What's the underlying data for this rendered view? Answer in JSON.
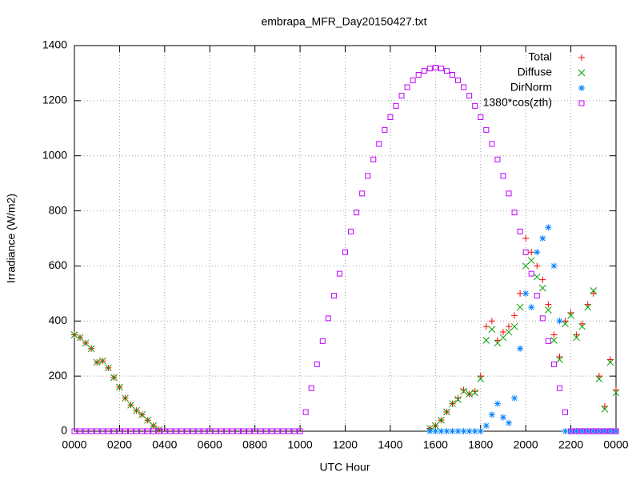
{
  "chart_data": {
    "type": "scatter",
    "title": "embrapa_MFR_Day20150427.txt",
    "xlabel": "UTC Hour",
    "ylabel": "Irradiance (W/m2)",
    "xlim": [
      0,
      24
    ],
    "ylim": [
      0,
      1400
    ],
    "xticks": [
      {
        "value": 0,
        "label": "0000"
      },
      {
        "value": 2,
        "label": "0200"
      },
      {
        "value": 4,
        "label": "0400"
      },
      {
        "value": 6,
        "label": "0600"
      },
      {
        "value": 8,
        "label": "0800"
      },
      {
        "value": 10,
        "label": "1000"
      },
      {
        "value": 12,
        "label": "1200"
      },
      {
        "value": 14,
        "label": "1400"
      },
      {
        "value": 16,
        "label": "1600"
      },
      {
        "value": 18,
        "label": "1800"
      },
      {
        "value": 20,
        "label": "2000"
      },
      {
        "value": 22,
        "label": "2200"
      },
      {
        "value": 24,
        "label": "0000"
      }
    ],
    "yticks": [
      0,
      200,
      400,
      600,
      800,
      1000,
      1200,
      1400
    ],
    "grid": true,
    "legend": "top-right",
    "x": [
      0,
      0.25,
      0.5,
      0.75,
      1,
      1.25,
      1.5,
      1.75,
      2,
      2.25,
      2.5,
      2.75,
      3,
      3.25,
      3.5,
      3.75,
      4,
      4.25,
      4.5,
      4.75,
      5,
      5.25,
      5.5,
      5.75,
      6,
      6.25,
      6.5,
      6.75,
      7,
      7.25,
      7.5,
      7.75,
      8,
      8.25,
      8.5,
      8.75,
      9,
      9.25,
      9.5,
      9.75,
      10,
      10.25,
      10.5,
      10.75,
      11,
      11.25,
      11.5,
      11.75,
      12,
      12.25,
      12.5,
      12.75,
      13,
      13.25,
      13.5,
      13.75,
      14,
      14.25,
      14.5,
      14.75,
      15,
      15.25,
      15.5,
      15.75,
      16,
      16.25,
      16.5,
      16.75,
      17,
      17.25,
      17.5,
      17.75,
      18,
      18.25,
      18.5,
      18.75,
      19,
      19.25,
      19.5,
      19.75,
      20,
      20.25,
      20.5,
      20.75,
      21,
      21.25,
      21.5,
      21.75,
      22,
      22.25,
      22.5,
      22.75,
      23,
      23.25,
      23.5,
      23.75,
      24
    ],
    "series": [
      {
        "name": "Total",
        "color": "#ff0000",
        "marker": "plus",
        "values": [
          350,
          340,
          320,
          300,
          250,
          255,
          230,
          195,
          160,
          120,
          95,
          75,
          60,
          40,
          20,
          5,
          null,
          null,
          null,
          null,
          null,
          null,
          null,
          null,
          null,
          null,
          null,
          null,
          null,
          null,
          null,
          null,
          null,
          null,
          null,
          null,
          null,
          null,
          null,
          null,
          null,
          null,
          null,
          null,
          null,
          null,
          null,
          null,
          null,
          null,
          null,
          null,
          null,
          null,
          null,
          null,
          null,
          null,
          null,
          null,
          null,
          null,
          null,
          10,
          20,
          40,
          70,
          100,
          120,
          150,
          135,
          145,
          200,
          380,
          400,
          330,
          360,
          380,
          420,
          500,
          700,
          650,
          600,
          550,
          460,
          350,
          270,
          400,
          430,
          350,
          390,
          460,
          500,
          200,
          90,
          260,
          150
        ]
      },
      {
        "name": "Diffuse",
        "color": "#00a000",
        "marker": "cross",
        "values": [
          350,
          340,
          320,
          300,
          250,
          255,
          230,
          195,
          160,
          120,
          95,
          75,
          60,
          40,
          20,
          5,
          null,
          null,
          null,
          null,
          null,
          null,
          null,
          null,
          null,
          null,
          null,
          null,
          null,
          null,
          null,
          null,
          null,
          null,
          null,
          null,
          null,
          null,
          null,
          null,
          null,
          null,
          null,
          null,
          null,
          null,
          null,
          null,
          null,
          null,
          null,
          null,
          null,
          null,
          null,
          null,
          null,
          null,
          null,
          null,
          null,
          null,
          null,
          10,
          20,
          40,
          70,
          100,
          115,
          145,
          135,
          140,
          190,
          330,
          370,
          320,
          340,
          360,
          380,
          450,
          600,
          620,
          560,
          520,
          440,
          330,
          260,
          390,
          420,
          340,
          380,
          450,
          510,
          190,
          80,
          250,
          140
        ]
      },
      {
        "name": "DirNorm",
        "color": "#0080ff",
        "marker": "star",
        "values": [
          null,
          null,
          null,
          null,
          null,
          null,
          null,
          null,
          null,
          null,
          null,
          null,
          null,
          null,
          null,
          null,
          null,
          null,
          null,
          null,
          null,
          null,
          null,
          null,
          null,
          null,
          null,
          null,
          null,
          null,
          null,
          null,
          null,
          null,
          null,
          null,
          null,
          null,
          null,
          null,
          null,
          null,
          null,
          null,
          null,
          null,
          null,
          null,
          null,
          null,
          null,
          null,
          null,
          null,
          null,
          null,
          null,
          null,
          null,
          null,
          null,
          null,
          null,
          0,
          0,
          0,
          0,
          0,
          0,
          0,
          0,
          0,
          0,
          20,
          60,
          100,
          50,
          30,
          120,
          300,
          500,
          450,
          650,
          700,
          740,
          600,
          400,
          0,
          0,
          0,
          0,
          0,
          0,
          0,
          0,
          0,
          0
        ]
      },
      {
        "name": "1380*cos(zth)",
        "color": "#c000ff",
        "marker": "square",
        "values": [
          0,
          0,
          0,
          0,
          0,
          0,
          0,
          0,
          0,
          0,
          0,
          0,
          0,
          0,
          0,
          0,
          0,
          0,
          0,
          0,
          0,
          0,
          0,
          0,
          0,
          0,
          0,
          0,
          0,
          0,
          0,
          0,
          0,
          0,
          0,
          0,
          0,
          0,
          0,
          0,
          0,
          69,
          156,
          243,
          327,
          410,
          492,
          572,
          650,
          725,
          794,
          863,
          927,
          987,
          1043,
          1094,
          1140,
          1181,
          1218,
          1249,
          1274,
          1294,
          1308,
          1317,
          1320,
          1317,
          1308,
          1294,
          1274,
          1249,
          1218,
          1181,
          1140,
          1094,
          1043,
          987,
          927,
          863,
          794,
          725,
          650,
          572,
          492,
          410,
          327,
          243,
          156,
          69,
          0,
          0,
          0,
          0,
          0,
          0,
          0,
          0,
          0
        ]
      }
    ]
  }
}
